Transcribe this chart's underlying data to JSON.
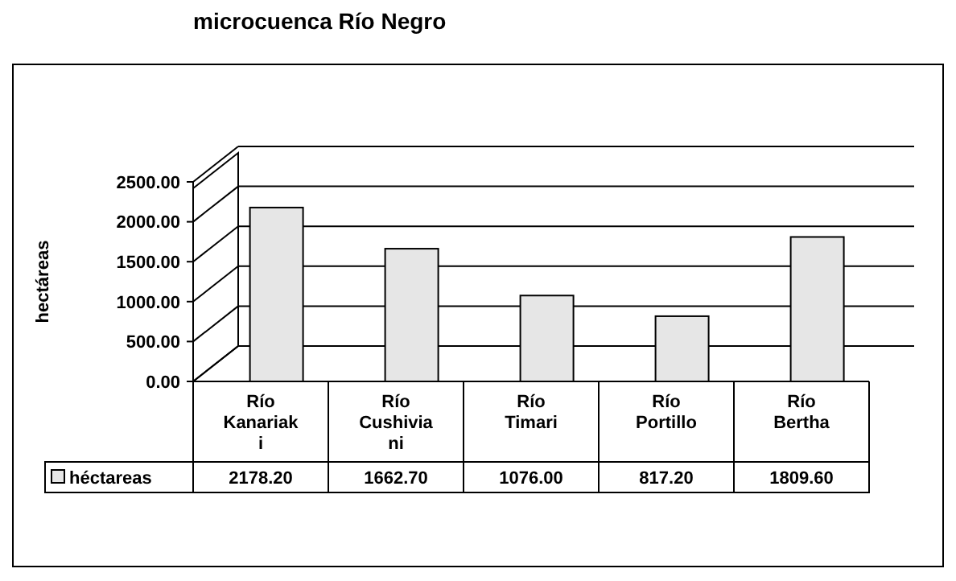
{
  "chart_data": {
    "type": "bar",
    "title": "microcuenca Río Negro",
    "ylabel": "hectáreas",
    "categories": [
      "Río Kanariaki",
      "Río Cushiviani",
      "Río Timari",
      "Río Portillo",
      "Río Bertha"
    ],
    "series": [
      {
        "name": "héctareas",
        "color": "#e6e6e6",
        "values": [
          2178.2,
          1662.7,
          1076.0,
          817.2,
          1809.6
        ],
        "value_labels": [
          "2178.20",
          "1662.70",
          "1076.00",
          "817.20",
          "1809.60"
        ]
      }
    ],
    "ylim": [
      0,
      2500
    ],
    "yticks": [
      {
        "value": 0,
        "label": "0.00"
      },
      {
        "value": 500,
        "label": "500.00"
      },
      {
        "value": 1000,
        "label": "1000.00"
      },
      {
        "value": 1500,
        "label": "1500.00"
      },
      {
        "value": 2000,
        "label": "2000.00"
      },
      {
        "value": 2500,
        "label": "2500.00"
      }
    ],
    "grid": "y",
    "data_labels": true,
    "legend": "bottom"
  }
}
